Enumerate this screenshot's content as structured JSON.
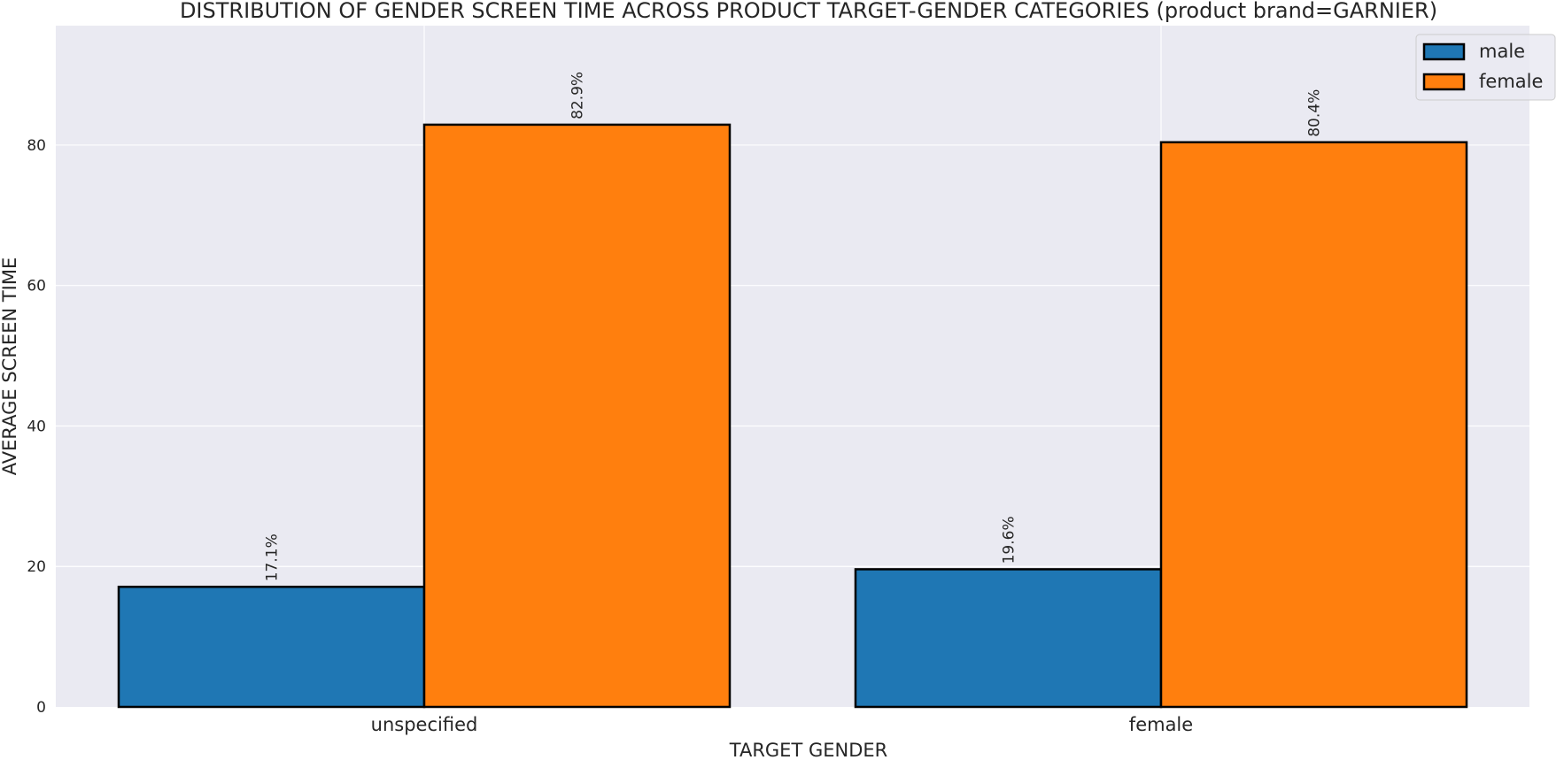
{
  "chart_data": {
    "type": "bar",
    "title": "DISTRIBUTION OF GENDER SCREEN TIME ACROSS PRODUCT TARGET-GENDER CATEGORIES (product brand=GARNIER)",
    "xlabel": "TARGET GENDER",
    "ylabel": "AVERAGE SCREEN TIME",
    "categories": [
      "unspecified",
      "female"
    ],
    "series": [
      {
        "name": "male",
        "color": "#1f77b4",
        "values": [
          17.1,
          19.6
        ],
        "labels": [
          "17.1%",
          "19.6%"
        ]
      },
      {
        "name": "female",
        "color": "#ff7f0e",
        "values": [
          82.9,
          80.4
        ],
        "labels": [
          "82.9%",
          "80.4%"
        ]
      }
    ],
    "ylim": [
      0,
      97
    ],
    "yticks": [
      0,
      20,
      40,
      60,
      80
    ],
    "grid": true,
    "legend_position": "top-right",
    "background_color": "#eaeaf2"
  }
}
